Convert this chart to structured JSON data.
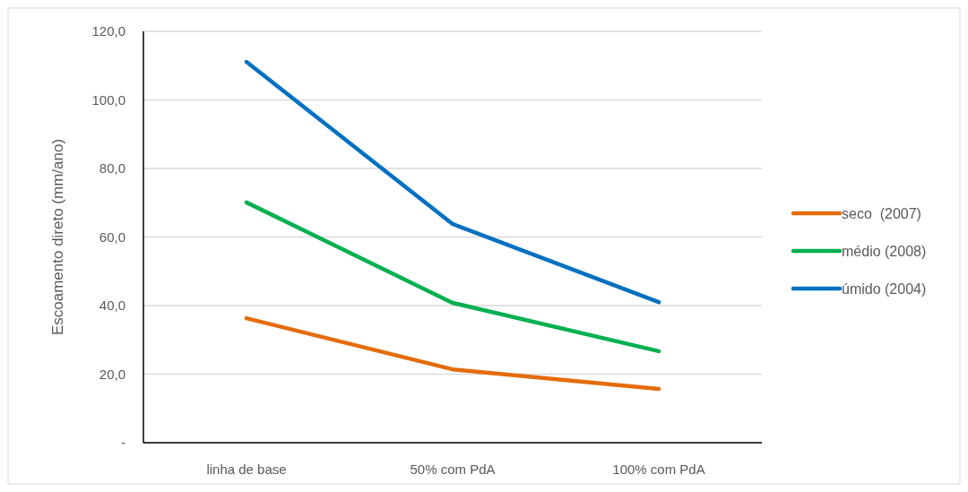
{
  "chart_data": {
    "type": "line",
    "ylabel": "Escoamento direto (mm/ano)",
    "categories": [
      "linha de base",
      "50% com PdA",
      "100% com PdA"
    ],
    "series": [
      {
        "name": "seco  (2007)",
        "color": "#e46c0a",
        "values": [
          36.3,
          21.4,
          15.7
        ]
      },
      {
        "name": "médio (2008)",
        "color": "#00b050",
        "values": [
          70.1,
          40.8,
          26.7
        ]
      },
      {
        "name": "úmido (2004)",
        "color": "#0070c0",
        "values": [
          111.1,
          63.8,
          41.0
        ]
      }
    ],
    "ylim": [
      0,
      120
    ],
    "yticks": [
      {
        "value": 0,
        "label": "-"
      },
      {
        "value": 20,
        "label": "20,0"
      },
      {
        "value": 40,
        "label": "40,0"
      },
      {
        "value": 60,
        "label": "60,0"
      },
      {
        "value": 80,
        "label": "80,0"
      },
      {
        "value": 100,
        "label": "100,0"
      },
      {
        "value": 120,
        "label": "120,0"
      }
    ],
    "grid": "y",
    "legend": "right",
    "marker": "none",
    "line_style": "solid"
  }
}
